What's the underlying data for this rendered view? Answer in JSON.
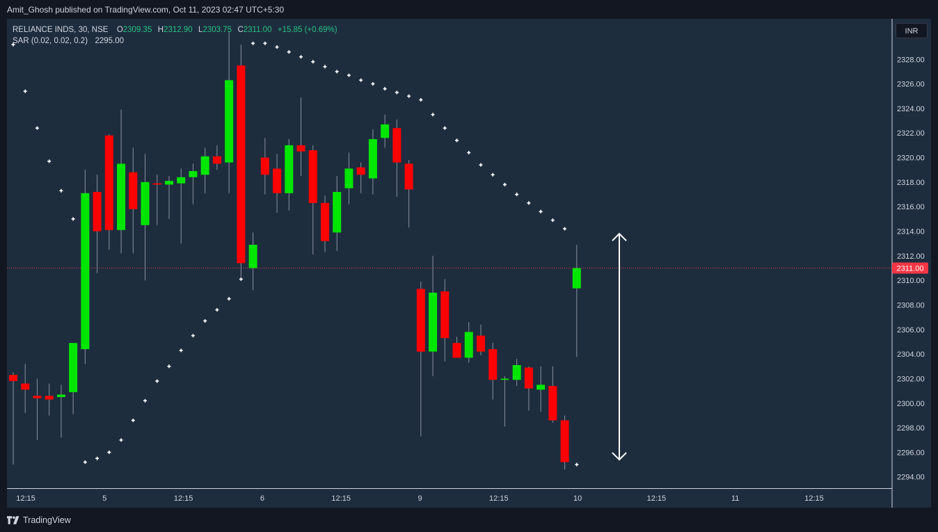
{
  "header": {
    "published_text": "Amit_Ghosh published on TradingView.com, Oct 11, 2023 02:47 UTC+5:30"
  },
  "legend": {
    "symbol": "RELIANCE INDS, 30, NSE",
    "open_label": "O",
    "open_value": "2309.35",
    "high_label": "H",
    "high_value": "2312.90",
    "low_label": "L",
    "low_value": "2303.75",
    "close_label": "C",
    "close_value": "2311.00",
    "change": "+15.85 (+0.69%)",
    "sar_label": "SAR (0.02, 0.02, 0.2)",
    "sar_value": "2295.00"
  },
  "currency_button": "INR",
  "brand": "TradingView",
  "colors": {
    "background": "#1e2d3e",
    "up": "#00e600",
    "down": "#ff0000",
    "wick": "#8a929e",
    "sar": "#ffffff",
    "price_line": "#f23645",
    "axis_text": "#d1d4dc"
  },
  "chart_data": {
    "type": "candlestick",
    "symbol": "RELIANCE INDS",
    "interval": "30",
    "exchange": "NSE",
    "last_price": 2311.0,
    "last_price_label": "2311.00",
    "ylim": [
      2293.0,
      2330.0
    ],
    "y_ticks": [
      "2294.00",
      "2296.00",
      "2298.00",
      "2300.00",
      "2302.00",
      "2304.00",
      "2306.00",
      "2308.00",
      "2310.00",
      "2312.00",
      "2314.00",
      "2316.00",
      "2318.00",
      "2320.00",
      "2322.00",
      "2324.00",
      "2326.00",
      "2328.00"
    ],
    "x_ticks": [
      "12:15",
      "5",
      "12:15",
      "6",
      "12:15",
      "9",
      "12:15",
      "10",
      "12:15",
      "11",
      "12:15"
    ],
    "candles": [
      {
        "o": 2302.3,
        "h": 2302.5,
        "l": 2295.0,
        "c": 2301.8
      },
      {
        "o": 2301.6,
        "h": 2303.2,
        "l": 2299.2,
        "c": 2301.1
      },
      {
        "o": 2300.6,
        "h": 2302.0,
        "l": 2297.0,
        "c": 2300.4
      },
      {
        "o": 2300.6,
        "h": 2301.6,
        "l": 2299.0,
        "c": 2300.3
      },
      {
        "o": 2300.5,
        "h": 2301.5,
        "l": 2297.2,
        "c": 2300.7
      },
      {
        "o": 2300.9,
        "h": 2304.8,
        "l": 2299.1,
        "c": 2304.9
      },
      {
        "o": 2304.4,
        "h": 2319.0,
        "l": 2303.2,
        "c": 2317.1
      },
      {
        "o": 2317.2,
        "h": 2318.6,
        "l": 2310.6,
        "c": 2314.0
      },
      {
        "o": 2321.8,
        "h": 2321.9,
        "l": 2312.5,
        "c": 2314.1
      },
      {
        "o": 2314.1,
        "h": 2323.9,
        "l": 2312.2,
        "c": 2319.5
      },
      {
        "o": 2318.8,
        "h": 2320.8,
        "l": 2312.2,
        "c": 2315.8
      },
      {
        "o": 2314.5,
        "h": 2320.3,
        "l": 2310.0,
        "c": 2318.0
      },
      {
        "o": 2317.9,
        "h": 2318.6,
        "l": 2314.5,
        "c": 2317.8
      },
      {
        "o": 2317.8,
        "h": 2318.5,
        "l": 2315.0,
        "c": 2318.1
      },
      {
        "o": 2317.9,
        "h": 2319.1,
        "l": 2313.0,
        "c": 2318.4
      },
      {
        "o": 2318.4,
        "h": 2319.5,
        "l": 2316.2,
        "c": 2318.9
      },
      {
        "o": 2318.6,
        "h": 2320.8,
        "l": 2317.1,
        "c": 2320.1
      },
      {
        "o": 2320.1,
        "h": 2321.0,
        "l": 2319.0,
        "c": 2319.5
      },
      {
        "o": 2319.6,
        "h": 2330.2,
        "l": 2317.1,
        "c": 2326.3
      },
      {
        "o": 2327.5,
        "h": 2329.2,
        "l": 2310.3,
        "c": 2311.4
      },
      {
        "o": 2311.0,
        "h": 2313.9,
        "l": 2309.2,
        "c": 2312.9
      },
      {
        "o": 2320.0,
        "h": 2321.6,
        "l": 2317.0,
        "c": 2318.6
      },
      {
        "o": 2319.1,
        "h": 2320.3,
        "l": 2315.5,
        "c": 2317.1
      },
      {
        "o": 2317.1,
        "h": 2321.5,
        "l": 2315.7,
        "c": 2321.0
      },
      {
        "o": 2321.0,
        "h": 2324.9,
        "l": 2318.5,
        "c": 2320.5
      },
      {
        "o": 2320.6,
        "h": 2321.0,
        "l": 2312.1,
        "c": 2316.3
      },
      {
        "o": 2316.3,
        "h": 2316.9,
        "l": 2312.3,
        "c": 2313.2
      },
      {
        "o": 2313.9,
        "h": 2318.5,
        "l": 2312.4,
        "c": 2317.2
      },
      {
        "o": 2317.5,
        "h": 2320.4,
        "l": 2316.2,
        "c": 2319.1
      },
      {
        "o": 2319.2,
        "h": 2319.6,
        "l": 2317.1,
        "c": 2318.6
      },
      {
        "o": 2318.3,
        "h": 2322.3,
        "l": 2317.0,
        "c": 2321.5
      },
      {
        "o": 2321.6,
        "h": 2323.5,
        "l": 2320.8,
        "c": 2322.7
      },
      {
        "o": 2322.4,
        "h": 2323.1,
        "l": 2316.8,
        "c": 2319.6
      },
      {
        "o": 2319.5,
        "h": 2319.8,
        "l": 2314.3,
        "c": 2317.4
      },
      {
        "o": 2309.3,
        "h": 2309.9,
        "l": 2297.3,
        "c": 2304.2
      },
      {
        "o": 2304.2,
        "h": 2312.0,
        "l": 2302.2,
        "c": 2309.0
      },
      {
        "o": 2309.1,
        "h": 2310.1,
        "l": 2303.4,
        "c": 2305.3
      },
      {
        "o": 2304.9,
        "h": 2305.4,
        "l": 2303.9,
        "c": 2303.7
      },
      {
        "o": 2303.7,
        "h": 2306.6,
        "l": 2303.3,
        "c": 2305.8
      },
      {
        "o": 2305.5,
        "h": 2306.4,
        "l": 2303.9,
        "c": 2304.2
      },
      {
        "o": 2304.4,
        "h": 2304.9,
        "l": 2300.3,
        "c": 2301.9
      },
      {
        "o": 2301.9,
        "h": 2302.2,
        "l": 2298.1,
        "c": 2302.0
      },
      {
        "o": 2301.9,
        "h": 2303.6,
        "l": 2301.4,
        "c": 2303.1
      },
      {
        "o": 2302.9,
        "h": 2303.0,
        "l": 2299.4,
        "c": 2301.2
      },
      {
        "o": 2301.1,
        "h": 2303.0,
        "l": 2299.3,
        "c": 2301.5
      },
      {
        "o": 2301.4,
        "h": 2303.0,
        "l": 2298.4,
        "c": 2298.6
      },
      {
        "o": 2298.6,
        "h": 2299.0,
        "l": 2294.6,
        "c": 2295.2
      },
      {
        "o": 2309.35,
        "h": 2312.9,
        "l": 2303.75,
        "c": 2311.0
      }
    ],
    "sar": [
      2329.2,
      2325.4,
      2322.4,
      2319.7,
      2317.3,
      2315.0,
      2295.2,
      2295.5,
      2296.0,
      2297.0,
      2298.6,
      2300.2,
      2301.8,
      2303.0,
      2304.3,
      2305.5,
      2306.7,
      2307.6,
      2308.5,
      2310.1,
      2329.3,
      2329.3,
      2329.0,
      2328.6,
      2328.2,
      2327.8,
      2327.4,
      2327.0,
      2326.7,
      2326.3,
      2326.0,
      2325.6,
      2325.3,
      2325.0,
      2324.7,
      2323.5,
      2322.4,
      2321.4,
      2320.4,
      2319.4,
      2318.6,
      2317.8,
      2317.0,
      2316.3,
      2315.6,
      2314.9,
      2314.2,
      2295.0
    ],
    "annotation": {
      "type": "double-arrow",
      "from_price": 2313.8,
      "to_price": 2295.4
    }
  }
}
